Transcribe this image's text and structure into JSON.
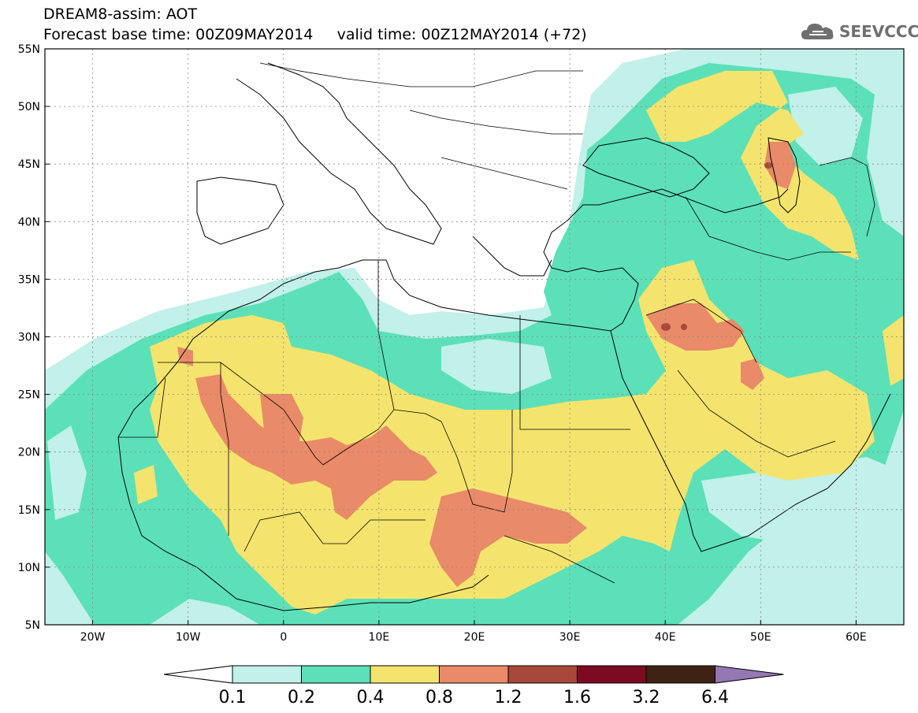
{
  "header": {
    "line1": "DREAM8-assim: AOT",
    "line2": "Forecast base time: 00Z09MAY2014     valid time: 00Z12MAY2014 (+72)",
    "logo_text": "SEEVCCC"
  },
  "map": {
    "lon_range": [
      -25,
      65
    ],
    "lat_range": [
      5,
      55
    ],
    "lon_ticks": [
      {
        "value": -20,
        "label": "20W"
      },
      {
        "value": -10,
        "label": "10W"
      },
      {
        "value": 0,
        "label": "0"
      },
      {
        "value": 10,
        "label": "10E"
      },
      {
        "value": 20,
        "label": "20E"
      },
      {
        "value": 30,
        "label": "30E"
      },
      {
        "value": 40,
        "label": "40E"
      },
      {
        "value": 50,
        "label": "50E"
      },
      {
        "value": 60,
        "label": "60E"
      }
    ],
    "lat_ticks": [
      {
        "value": 5,
        "label": "5N"
      },
      {
        "value": 10,
        "label": "10N"
      },
      {
        "value": 15,
        "label": "15N"
      },
      {
        "value": 20,
        "label": "20N"
      },
      {
        "value": 25,
        "label": "25N"
      },
      {
        "value": 30,
        "label": "30N"
      },
      {
        "value": 35,
        "label": "35N"
      },
      {
        "value": 40,
        "label": "40N"
      },
      {
        "value": 45,
        "label": "45N"
      },
      {
        "value": 50,
        "label": "50N"
      },
      {
        "value": 55,
        "label": "55N"
      }
    ],
    "grid": true
  },
  "colorbar": {
    "labels": [
      "0.1",
      "0.2",
      "0.4",
      "0.8",
      "1.2",
      "1.6",
      "3.2",
      "6.4"
    ],
    "colors": [
      "#ffffff",
      "#c2f0ea",
      "#5ce0b8",
      "#f4e46e",
      "#e98a68",
      "#a8483a",
      "#7c0a22",
      "#3e2315",
      "#9477b3"
    ]
  },
  "legend_colors": {
    "c01": "#c2f0ea",
    "c02": "#5ce0b8",
    "c04": "#f4e46e",
    "c08": "#e98a68",
    "c12": "#a8483a"
  }
}
